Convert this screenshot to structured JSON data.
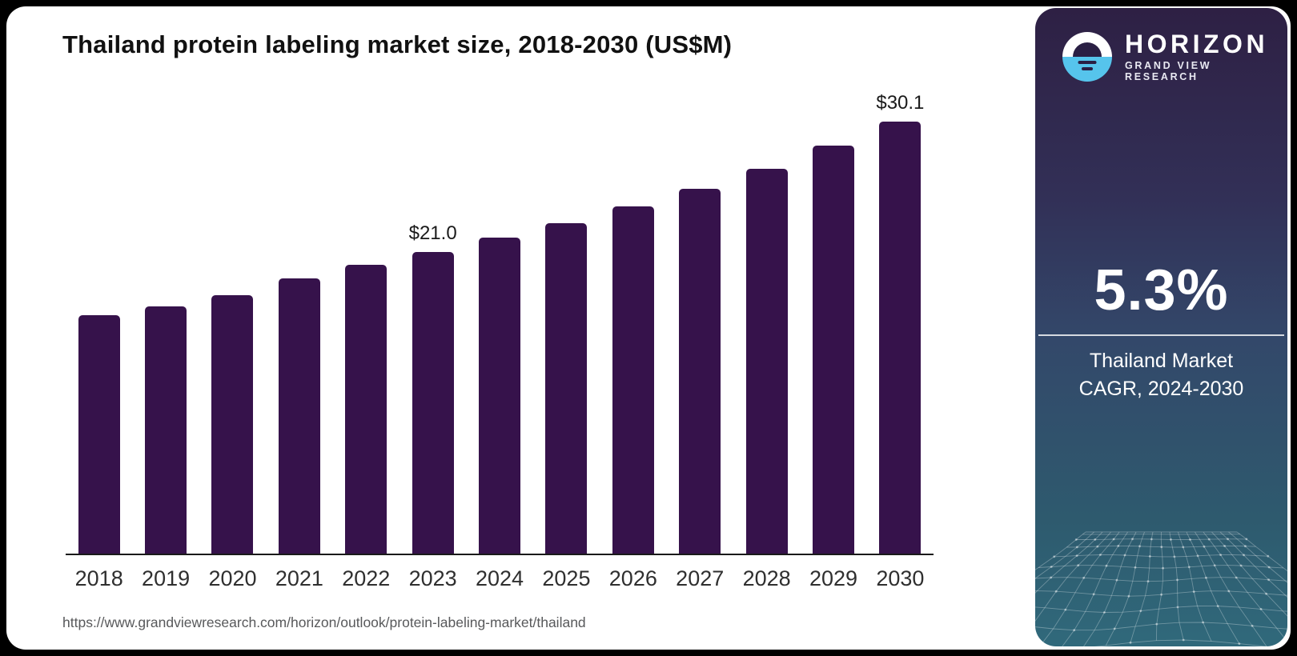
{
  "colors": {
    "canvas_bg": "#000000",
    "card_bg": "#ffffff",
    "bar": "#36124B",
    "axis": "#1a1a1a",
    "title_text": "#111111",
    "year_text": "#2f2f2f",
    "url_text": "#58595b",
    "panel_top": "#2E2044",
    "panel_mid": "#33486A",
    "panel_bottom": "#30697B",
    "logo_blue": "#56C4EC",
    "panel_text": "#ffffff"
  },
  "chart": {
    "title": "Thailand protein labeling market size, 2018-2030 (US$M)",
    "source_url": "https://www.grandviewresearch.com/horizon/outlook/protein-labeling-market/thailand"
  },
  "chart_data": {
    "type": "bar",
    "title": "Thailand protein labeling market size, 2018-2030 (US$M)",
    "unit": "US$M",
    "categories": [
      "2018",
      "2019",
      "2020",
      "2021",
      "2022",
      "2023",
      "2024",
      "2025",
      "2026",
      "2027",
      "2028",
      "2029",
      "2030"
    ],
    "values": [
      16.6,
      17.2,
      18.0,
      19.2,
      20.1,
      21.0,
      22.0,
      23.0,
      24.2,
      25.4,
      26.8,
      28.4,
      30.1
    ],
    "point_labels": {
      "2023": "$21.0",
      "2030": "$30.1"
    },
    "xlabel": "",
    "ylabel": "",
    "ylim": [
      0,
      30.1
    ],
    "grid": false,
    "legend": false,
    "bar_color": "#36124B"
  },
  "panel": {
    "brand": "HORIZON",
    "brand_sub": "GRAND VIEW RESEARCH",
    "stat_value": "5.3%",
    "stat_caption_line1": "Thailand Market",
    "stat_caption_line2": "CAGR, 2024-2030"
  }
}
